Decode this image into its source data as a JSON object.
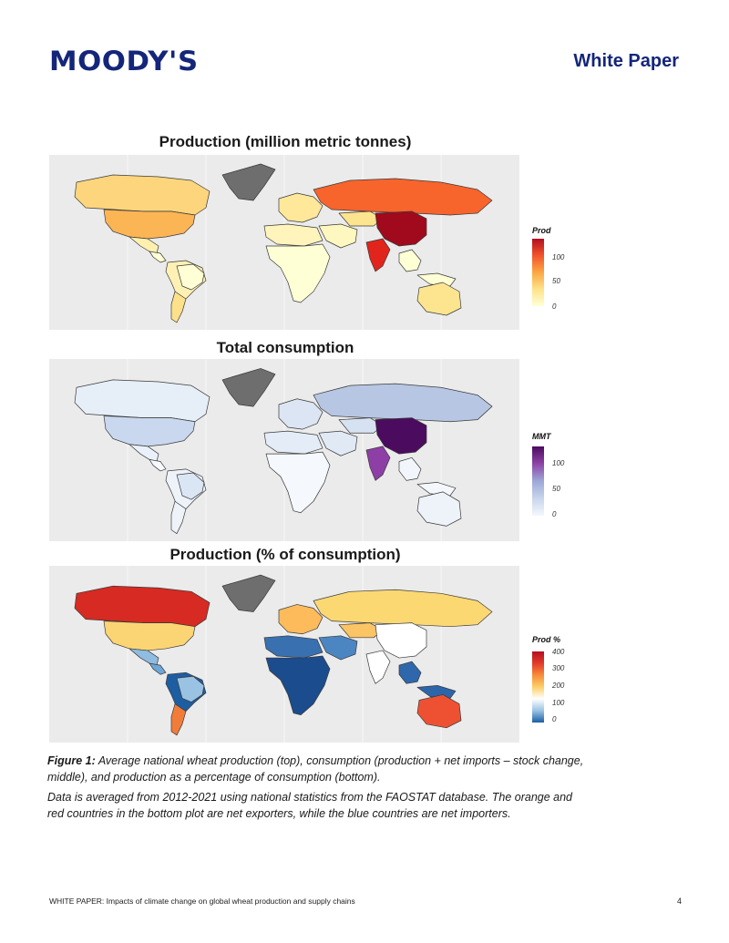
{
  "header": {
    "logo_text": "MOODY'S",
    "doc_type": "White Paper"
  },
  "maps": [
    {
      "title": "Production (million metric tonnes)",
      "legend_title": "Prod",
      "ticks": [
        "100",
        "50",
        "0"
      ],
      "gradient": [
        "#b30f1f",
        "#f2542c",
        "#fca743",
        "#fde38a",
        "#ffffd6"
      ]
    },
    {
      "title": "Total consumption",
      "legend_title": "MMT",
      "ticks": [
        "100",
        "50",
        "0"
      ],
      "gradient": [
        "#4b0b5e",
        "#8e44a8",
        "#9da8d6",
        "#c8d5ea",
        "#f4f8fd"
      ]
    },
    {
      "title": "Production (% of consumption)",
      "legend_title": "Prod %",
      "ticks": [
        "400",
        "300",
        "200",
        "100",
        "0"
      ],
      "gradient": [
        "#b30f1f",
        "#e23a2a",
        "#f88c3a",
        "#fbd068",
        "#ffffff",
        "#9ac3e3",
        "#1a5fa3"
      ]
    }
  ],
  "caption": {
    "figure_label": "Figure 1:",
    "figure_text": "Average national wheat production (top), consumption (production + net imports – stock change, middle), and production as a percentage of consumption (bottom).",
    "note": "Data is averaged from 2012-2021 using national statistics from the FAOSTAT database. The orange and red countries in the bottom plot are net exporters, while the blue countries are net importers."
  },
  "footer": {
    "text": "WHITE PAPER: Impacts of climate change on global wheat production and supply chains",
    "page": "4"
  },
  "region_colors": {
    "map1": {
      "greenland": "#6e6e6e",
      "canada": "#fdd57c",
      "usa": "#fcb555",
      "mexico": "#fff0b0",
      "central": "#ffffd6",
      "south_america": "#fff1b3",
      "argentina": "#fde08a",
      "brazil": "#ffffd6",
      "europe": "#ffe89a",
      "russia": "#f7642c",
      "kazakh": "#fde48e",
      "mideast": "#fff7c0",
      "africa": "#ffffd6",
      "north_africa": "#fff4bb",
      "india": "#e1251c",
      "china": "#a00a1c",
      "se_asia": "#ffffd6",
      "australia": "#fde590",
      "islands": "#ffffd6"
    },
    "map2": {
      "greenland": "#6e6e6e",
      "canada": "#e6eef8",
      "usa": "#c9d8ee",
      "mexico": "#eaf1fa",
      "central": "#f6f9fd",
      "south_america": "#eef3fa",
      "argentina": "#eef3fa",
      "brazil": "#dbe6f4",
      "europe": "#dbe5f3",
      "russia": "#b7c6e3",
      "kazakh": "#d6e1f2",
      "mideast": "#e1e9f5",
      "africa": "#f5f8fd",
      "north_africa": "#e4ecf7",
      "india": "#8e3fa6",
      "china": "#4b0b5e",
      "se_asia": "#f2f6fc",
      "australia": "#eef3fa",
      "islands": "#f4f8fd"
    },
    "map3": {
      "greenland": "#6e6e6e",
      "canada": "#d62a22",
      "usa": "#fbd574",
      "mexico": "#8fbce0",
      "central": "#6ea6d6",
      "south_america": "#1d5ea3",
      "argentina": "#f17c3a",
      "brazil": "#9ac3e3",
      "europe": "#fdbb5b",
      "russia": "#fcd873",
      "kazakh": "#fbc465",
      "mideast": "#4b86c2",
      "africa": "#1b4c8d",
      "north_africa": "#3970b0",
      "india": "#ffffff",
      "china": "#ffffff",
      "se_asia": "#2e67ab",
      "australia": "#ee5132",
      "islands": "#2d65aa"
    }
  }
}
